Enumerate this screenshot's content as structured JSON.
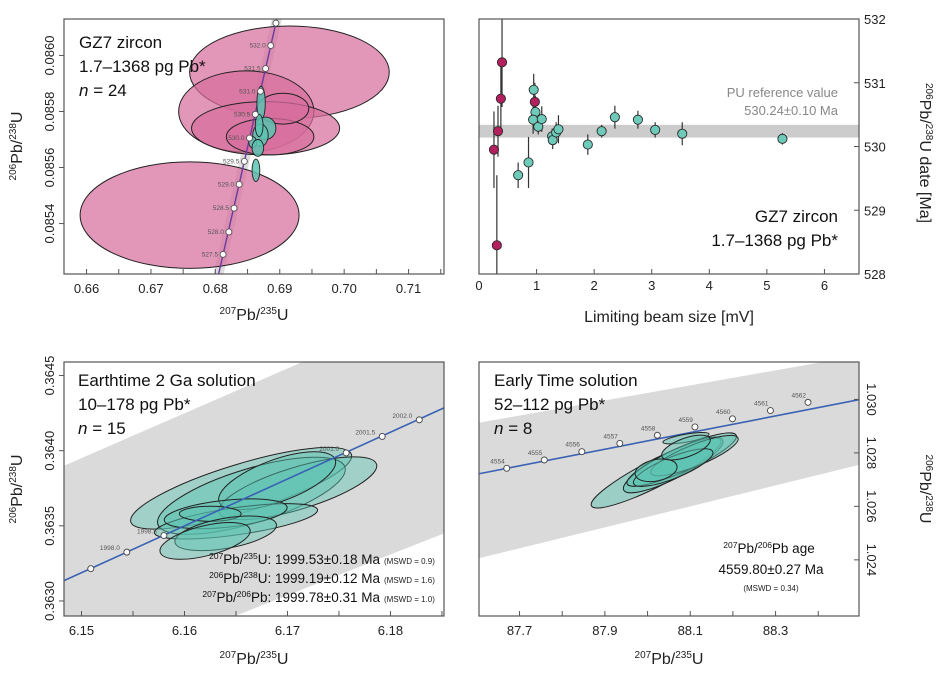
{
  "colors": {
    "pink_fill": "#d76e9c",
    "pink_dark": "#b4205e",
    "teal_fill": "#5cc4b2",
    "teal_point": "#6fcbb9",
    "concordia_line": "#3a62b4",
    "concordia_line_tl": "#6b3aa0",
    "band_gray": "#d4d4d4",
    "ellipse_stroke": "#222222",
    "ref_band": "#cccccc"
  },
  "chart_data": [
    {
      "id": "gz7-concordia",
      "type": "scatter",
      "subtype": "concordia-ellipses",
      "title_lines": [
        "GZ7 zircon",
        "1.7–1368 pg Pb*",
        "n = 24"
      ],
      "n_label_italic": "n",
      "n_label_value": "= 24",
      "xlabel": {
        "pre": "207",
        "mid": "Pb/",
        "sup2": "235",
        "post": "U"
      },
      "ylabel": {
        "pre": "206",
        "mid": "Pb/",
        "sup2": "238",
        "post": "U"
      },
      "xlim": [
        0.6565,
        0.7155
      ],
      "ylim": [
        0.08522,
        0.08613
      ],
      "xticks": [
        0.66,
        0.665,
        0.67,
        0.675,
        0.68,
        0.685,
        0.69,
        0.695,
        0.7,
        0.705,
        0.71,
        0.715
      ],
      "xtick_labels": [
        "0.66",
        "",
        "0.67",
        "",
        "0.68",
        "",
        "0.69",
        "",
        "0.70",
        "",
        "0.71",
        ""
      ],
      "yticks": [
        0.0854,
        0.0856,
        0.0858,
        0.086
      ],
      "ytick_labels": [
        "0.0854",
        "0.0856",
        "0.0858",
        "0.0860"
      ],
      "concordia": [
        {
          "age": "527.5",
          "x": 0.6812,
          "y": 0.08529
        },
        {
          "age": "528.0",
          "x": 0.6821,
          "y": 0.08537
        },
        {
          "age": "528.5",
          "x": 0.6829,
          "y": 0.085455
        },
        {
          "age": "529.0",
          "x": 0.6837,
          "y": 0.08554
        },
        {
          "age": "529.5",
          "x": 0.6845,
          "y": 0.085622
        },
        {
          "age": "530.0",
          "x": 0.6853,
          "y": 0.085705
        },
        {
          "age": "530.5",
          "x": 0.6862,
          "y": 0.08579
        },
        {
          "age": "531.0",
          "x": 0.687,
          "y": 0.085872
        },
        {
          "age": "531.5",
          "x": 0.6878,
          "y": 0.085953
        },
        {
          "age": "532.0",
          "x": 0.6886,
          "y": 0.086035
        },
        {
          "age": "",
          "x": 0.6894,
          "y": 0.086115
        }
      ],
      "ellipses_pink": [
        {
          "cx": 0.6915,
          "cy": 0.08594,
          "rx": 0.0155,
          "ry": 0.000165
        },
        {
          "cx": 0.6848,
          "cy": 0.0858,
          "rx": 0.0105,
          "ry": 0.000145
        },
        {
          "cx": 0.6878,
          "cy": 0.08574,
          "rx": 0.0115,
          "ry": 9.5e-05
        },
        {
          "cx": 0.6885,
          "cy": 0.08571,
          "rx": 0.0068,
          "ry": 6.5e-05
        },
        {
          "cx": 0.6905,
          "cy": 0.08581,
          "rx": 0.004,
          "ry": 5.5e-05
        },
        {
          "cx": 0.676,
          "cy": 0.08543,
          "rx": 0.017,
          "ry": 0.00019
        }
      ],
      "ellipses_teal": [
        {
          "cx": 0.6871,
          "cy": 0.08583,
          "rx": 0.00065,
          "ry": 6e-05
        },
        {
          "cx": 0.6878,
          "cy": 0.08574,
          "rx": 0.0016,
          "ry": 4e-05
        },
        {
          "cx": 0.687,
          "cy": 0.085715,
          "rx": 0.0012,
          "ry": 4e-05
        },
        {
          "cx": 0.6858,
          "cy": 0.08569,
          "rx": 0.0006,
          "ry": 2e-05
        },
        {
          "cx": 0.6866,
          "cy": 0.08567,
          "rx": 0.0009,
          "ry": 3e-05
        },
        {
          "cx": 0.6863,
          "cy": 0.08559,
          "rx": 0.0006,
          "ry": 4e-05
        },
        {
          "cx": 0.6868,
          "cy": 0.08575,
          "rx": 0.0006,
          "ry": 4e-05
        }
      ]
    },
    {
      "id": "gz7-beam",
      "type": "scatter",
      "subtype": "errorbars",
      "xlabel": "Limiting beam size [mV]",
      "ylabel": {
        "pre": "206",
        "mid": "Pb/",
        "sup2": "238",
        "post": "U date [Ma]"
      },
      "xlim": [
        0,
        6.6
      ],
      "ylim": [
        528,
        532
      ],
      "xticks": [
        0,
        1,
        2,
        3,
        4,
        5,
        6
      ],
      "xtick_labels": [
        "0",
        "1",
        "2",
        "3",
        "4",
        "5",
        "6"
      ],
      "yticks": [
        528,
        529,
        530,
        531,
        532
      ],
      "ytick_labels": [
        "528",
        "529",
        "530",
        "531",
        "532"
      ],
      "reference": {
        "label_line1": "PU reference value",
        "label_line2": "530.24±0.10 Ma",
        "value": 530.24,
        "uncertainty": 0.1
      },
      "annotation_lines": [
        "GZ7 zircon",
        "1.7–1368 pg Pb*"
      ],
      "points": [
        {
          "x": 0.26,
          "y": 529.95,
          "err": 0.6,
          "group": "pink"
        },
        {
          "x": 0.33,
          "y": 530.24,
          "err": 0.4,
          "group": "pink"
        },
        {
          "x": 0.31,
          "y": 528.45,
          "err": 1.1,
          "group": "pink"
        },
        {
          "x": 0.38,
          "y": 530.75,
          "err": 0.55,
          "group": "pink"
        },
        {
          "x": 0.4,
          "y": 531.32,
          "err": 0.7,
          "group": "pink"
        },
        {
          "x": 0.97,
          "y": 530.7,
          "err": 0.3,
          "group": "pink"
        },
        {
          "x": 0.68,
          "y": 529.55,
          "err": 0.2,
          "group": "teal"
        },
        {
          "x": 0.86,
          "y": 529.75,
          "err": 0.4,
          "group": "teal"
        },
        {
          "x": 0.95,
          "y": 530.89,
          "err": 0.25,
          "group": "teal"
        },
        {
          "x": 0.98,
          "y": 530.54,
          "err": 0.25,
          "group": "teal"
        },
        {
          "x": 0.94,
          "y": 530.42,
          "err": 0.22,
          "group": "teal"
        },
        {
          "x": 1.03,
          "y": 530.31,
          "err": 0.12,
          "group": "teal"
        },
        {
          "x": 1.09,
          "y": 530.43,
          "err": 0.2,
          "group": "teal"
        },
        {
          "x": 1.27,
          "y": 530.16,
          "err": 0.12,
          "group": "teal"
        },
        {
          "x": 1.28,
          "y": 530.1,
          "err": 0.14,
          "group": "teal"
        },
        {
          "x": 1.34,
          "y": 530.22,
          "err": 0.16,
          "group": "teal"
        },
        {
          "x": 1.38,
          "y": 530.27,
          "err": 0.22,
          "group": "teal"
        },
        {
          "x": 1.89,
          "y": 530.03,
          "err": 0.16,
          "group": "teal"
        },
        {
          "x": 2.13,
          "y": 530.24,
          "err": 0.1,
          "group": "teal"
        },
        {
          "x": 2.36,
          "y": 530.46,
          "err": 0.18,
          "group": "teal"
        },
        {
          "x": 2.76,
          "y": 530.42,
          "err": 0.14,
          "group": "teal"
        },
        {
          "x": 3.06,
          "y": 530.26,
          "err": 0.12,
          "group": "teal"
        },
        {
          "x": 3.53,
          "y": 530.2,
          "err": 0.18,
          "group": "teal"
        },
        {
          "x": 5.27,
          "y": 530.12,
          "err": 0.09,
          "group": "teal"
        }
      ]
    },
    {
      "id": "earthtime-2ga",
      "type": "scatter",
      "subtype": "concordia-ellipses",
      "title_lines": [
        "Earthtime 2 Ga solution",
        "10–178 pg Pb*",
        "n = 15"
      ],
      "n_label_italic": "n",
      "n_label_value": "= 15",
      "xlabel": {
        "pre": "207",
        "mid": "Pb/",
        "sup2": "235",
        "post": "U"
      },
      "ylabel": {
        "pre": "206",
        "mid": "Pb/",
        "sup2": "238",
        "post": "U"
      },
      "xlim": [
        6.1483,
        6.1852
      ],
      "ylim": [
        0.3629,
        0.36459
      ],
      "xticks": [
        6.15,
        6.155,
        6.16,
        6.165,
        6.17,
        6.175,
        6.18,
        6.185
      ],
      "xtick_labels": [
        "6.15",
        "",
        "6.16",
        "",
        "6.17",
        "",
        "6.18",
        ""
      ],
      "yticks": [
        0.363,
        0.3635,
        0.364,
        0.3645
      ],
      "ytick_labels": [
        "0.3630",
        "0.3635",
        "0.3640",
        "0.3645"
      ],
      "band": {
        "lower": [
          [
            6.1483,
            0.36245
          ],
          [
            6.1852,
            0.36345
          ]
        ],
        "upper": [
          [
            6.1483,
            0.3639
          ],
          [
            6.1852,
            0.365
          ]
        ]
      },
      "concordia": [
        {
          "age": "",
          "x": 6.1509,
          "y": 0.363215
        },
        {
          "age": "1998.0",
          "x": 6.1544,
          "y": 0.363325
        },
        {
          "age": "1998.5",
          "x": 6.158,
          "y": 0.363435
        },
        {
          "age": "2001.0",
          "x": 6.1757,
          "y": 0.363985
        },
        {
          "age": "2001.5",
          "x": 6.1792,
          "y": 0.364095
        },
        {
          "age": "2002.0",
          "x": 6.1828,
          "y": 0.364205
        }
      ],
      "concordia_line": [
        [
          6.1483,
          0.363135
        ],
        [
          6.1852,
          0.364285
        ]
      ],
      "ellipses_teal": [
        {
          "cx": 6.1655,
          "cy": 0.36375,
          "rx": 0.0112,
          "ry": 0.00016,
          "rot": -17
        },
        {
          "cx": 6.1665,
          "cy": 0.3637,
          "rx": 0.0095,
          "ry": 0.00018,
          "rot": -17
        },
        {
          "cx": 6.171,
          "cy": 0.36375,
          "rx": 0.008,
          "ry": 0.00014,
          "rot": -17
        },
        {
          "cx": 6.169,
          "cy": 0.3638,
          "rx": 0.006,
          "ry": 0.00014,
          "rot": -20
        },
        {
          "cx": 6.165,
          "cy": 0.36353,
          "rx": 0.008,
          "ry": 9e-05,
          "rot": -8
        },
        {
          "cx": 6.164,
          "cy": 0.36358,
          "rx": 0.006,
          "ry": 9e-05,
          "rot": -6
        },
        {
          "cx": 6.1625,
          "cy": 0.36358,
          "rx": 0.003,
          "ry": 5e-05,
          "rot": 0
        },
        {
          "cx": 6.164,
          "cy": 0.36345,
          "rx": 0.005,
          "ry": 0.0001,
          "rot": -10
        },
        {
          "cx": 6.162,
          "cy": 0.3634,
          "rx": 0.0045,
          "ry": 0.0001,
          "rot": -14
        }
      ],
      "results": [
        {
          "pre": "207",
          "mid": "Pb/",
          "sup2": "235",
          "post": "U: 1999.53±0.18 Ma",
          "mswd": "(MSWD = 0.9)"
        },
        {
          "pre": "206",
          "mid": "Pb/",
          "sup2": "238",
          "post": "U: 1999.19±0.12 Ma",
          "mswd": "(MSWD = 1.6)"
        },
        {
          "pre": "207",
          "mid": "Pb/",
          "sup2": "206",
          "post": "Pb: 1999.78±0.31 Ma",
          "mswd": "(MSWD = 1.0)"
        }
      ]
    },
    {
      "id": "early-time",
      "type": "scatter",
      "subtype": "concordia-ellipses",
      "title_lines": [
        "Early Time solution",
        "52–112 pg Pb*",
        "n = 8"
      ],
      "n_label_italic": "n",
      "n_label_value": "= 8",
      "xlabel": {
        "pre": "207",
        "mid": "Pb/",
        "sup2": "235",
        "post": "U"
      },
      "ylabel": {
        "pre": "206",
        "mid": "Pb/",
        "sup2": "238",
        "post": "U"
      },
      "xlim": [
        87.605,
        88.4955
      ],
      "ylim": [
        1.0219,
        1.0314
      ],
      "xticks": [
        87.7,
        87.8,
        87.9,
        88.0,
        88.1,
        88.2,
        88.3,
        88.4
      ],
      "xtick_labels": [
        "87.7",
        "",
        "87.9",
        "",
        "88.1",
        "",
        "88.3",
        ""
      ],
      "yticks": [
        1.024,
        1.026,
        1.028,
        1.03
      ],
      "ytick_labels": [
        "1.024",
        "1.026",
        "1.028",
        "1.030"
      ],
      "band": {
        "lower": [
          [
            87.605,
            1.02406
          ],
          [
            88.4955,
            1.02755
          ]
        ],
        "upper": [
          [
            87.605,
            1.02913
          ],
          [
            88.4955,
            1.03164
          ]
        ]
      },
      "concordia_line": [
        [
          87.605,
          1.02722
        ],
        [
          88.4955,
          1.02999
        ]
      ],
      "concordia": [
        {
          "age": "4554",
          "x": 87.67,
          "y": 1.027425
        },
        {
          "age": "4555",
          "x": 87.758,
          "y": 1.027735
        },
        {
          "age": "4556",
          "x": 87.846,
          "y": 1.028045
        },
        {
          "age": "4557",
          "x": 87.935,
          "y": 1.028355
        },
        {
          "age": "4558",
          "x": 88.023,
          "y": 1.02866
        },
        {
          "age": "4559",
          "x": 88.111,
          "y": 1.02897
        },
        {
          "age": "4560",
          "x": 88.199,
          "y": 1.029275
        },
        {
          "age": "4561",
          "x": 88.288,
          "y": 1.029585
        },
        {
          "age": "4562",
          "x": 88.376,
          "y": 1.02989
        }
      ],
      "ellipses_teal": [
        {
          "cx": 88.02,
          "cy": 1.02725,
          "rx": 0.17,
          "ry": 0.0005,
          "rot": -27
        },
        {
          "cx": 88.06,
          "cy": 1.02755,
          "rx": 0.13,
          "ry": 0.0005,
          "rot": -27
        },
        {
          "cx": 88.08,
          "cy": 1.02775,
          "rx": 0.14,
          "ry": 0.00045,
          "rot": -24
        },
        {
          "cx": 88.11,
          "cy": 1.0279,
          "rx": 0.11,
          "ry": 0.0004,
          "rot": -22
        },
        {
          "cx": 88.06,
          "cy": 1.02745,
          "rx": 0.1,
          "ry": 0.0004,
          "rot": -22
        },
        {
          "cx": 88.02,
          "cy": 1.02735,
          "rx": 0.05,
          "ry": 0.0004,
          "rot": -12
        },
        {
          "cx": 88.09,
          "cy": 1.02855,
          "rx": 0.055,
          "ry": 0.00015,
          "rot": -10
        },
        {
          "cx": 88.09,
          "cy": 1.0282,
          "rx": 0.06,
          "ry": 0.00035,
          "rot": -20
        }
      ],
      "result_lines": [
        {
          "pre": "207",
          "mid": "Pb/",
          "sup2": "206",
          "post": "Pb age"
        },
        {
          "text": "4559.80±0.27 Ma"
        },
        {
          "text": "(MSWD = 0.34)"
        }
      ]
    }
  ]
}
